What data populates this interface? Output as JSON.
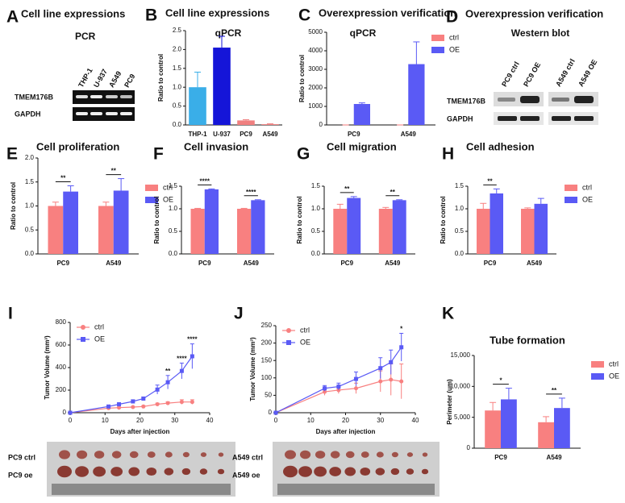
{
  "figures": [
    {
      "panel": "A",
      "title": "Cell line expressions",
      "subtitle": "PCR",
      "columns": [
        "THP-1",
        "U-937",
        "A549",
        "PC9"
      ],
      "rows": [
        "TMEM176B",
        "GAPDH"
      ]
    },
    {
      "panel": "D",
      "title": "Overexpression verification",
      "subtitle": "Western blot",
      "columns": [
        "PC9 ctrl",
        "PC9 OE",
        "A549 ctrl",
        "A549 OE"
      ],
      "rows": [
        "TMEM176B",
        "GAPDH"
      ]
    }
  ],
  "chart_data": [
    {
      "panel": "B",
      "type": "bar",
      "title": "Cell line expressions",
      "subtitle": "qPCR",
      "y_label": "Ratio to control",
      "categories": [
        "THP-1",
        "U-937",
        "PC9",
        "A549"
      ],
      "values": [
        1.0,
        2.05,
        0.12,
        0.02
      ],
      "errors": [
        0.4,
        0.3,
        0.02,
        0.01
      ],
      "colors": [
        "#3aaee8",
        "#1515d8",
        "#f08080",
        "#f08080"
      ],
      "ylim": [
        0,
        2.5
      ],
      "yticks": [
        {
          "value": 0,
          "label": "0.0"
        },
        0.5,
        {
          "value": 1,
          "label": "1.0"
        },
        1.5,
        {
          "value": 2,
          "label": "2.0"
        },
        2.5
      ]
    },
    {
      "panel": "C",
      "type": "bar",
      "title": "Overexpression verification",
      "subtitle": "qPCR",
      "y_label": "Ratio to control",
      "legend": "right",
      "categories": [
        "PC9",
        "A549"
      ],
      "series": [
        {
          "name": "ctrl",
          "color": "#f88080",
          "values": [
            1,
            1
          ],
          "errors": [
            0,
            0
          ]
        },
        {
          "name": "OE",
          "color": "#5a5af5",
          "values": [
            1130,
            3280
          ],
          "errors": [
            60,
            1200
          ]
        }
      ],
      "ylim": [
        0,
        5000
      ],
      "yticks": [
        0,
        1000,
        2000,
        3000,
        4000,
        5000
      ]
    },
    {
      "panel": "E",
      "type": "bar",
      "title": "Cell proliferation",
      "y_label": "Ratio to control",
      "legend": "right",
      "categories": [
        "PC9",
        "A549"
      ],
      "series": [
        {
          "name": "ctrl",
          "color": "#f88080",
          "values": [
            1.0,
            1.0
          ],
          "errors": [
            0.08,
            0.08
          ]
        },
        {
          "name": "OE",
          "color": "#5a5af5",
          "values": [
            1.3,
            1.32
          ],
          "errors": [
            0.12,
            0.25
          ]
        }
      ],
      "significance": [
        "**",
        "**"
      ],
      "ylim": [
        0,
        2
      ],
      "yticks": [
        {
          "value": 0,
          "label": "0.0"
        },
        0.5,
        {
          "value": 1,
          "label": "1.0"
        },
        1.5,
        {
          "value": 2,
          "label": "2.0"
        }
      ]
    },
    {
      "panel": "F",
      "type": "bar",
      "title": "Cell invasion",
      "y_label": "Ratio to control",
      "categories": [
        "PC9",
        "A549"
      ],
      "series": [
        {
          "name": "ctrl",
          "color": "#f88080",
          "values": [
            1.0,
            1.0
          ],
          "errors": [
            0.01,
            0.01
          ]
        },
        {
          "name": "OE",
          "color": "#5a5af5",
          "values": [
            1.43,
            1.19
          ],
          "errors": [
            0.01,
            0.01
          ]
        }
      ],
      "significance": [
        "****",
        "****"
      ],
      "ylim": [
        0,
        1.5
      ],
      "yticks": [
        {
          "value": 0,
          "label": "0.0"
        },
        0.5,
        {
          "value": 1,
          "label": "1.0"
        },
        1.5
      ]
    },
    {
      "panel": "G",
      "type": "bar",
      "title": "Cell migration",
      "y_label": "Ratio to control",
      "categories": [
        "PC9",
        "A549"
      ],
      "series": [
        {
          "name": "ctrl",
          "color": "#f88080",
          "values": [
            1.0,
            1.0
          ],
          "errors": [
            0.1,
            0.03
          ]
        },
        {
          "name": "OE",
          "color": "#5a5af5",
          "values": [
            1.24,
            1.19
          ],
          "errors": [
            0.03,
            0.01
          ]
        }
      ],
      "significance": [
        "**",
        "**"
      ],
      "ylim": [
        0,
        1.5
      ],
      "yticks": [
        {
          "value": 0,
          "label": "0.0"
        },
        0.5,
        {
          "value": 1,
          "label": "1.0"
        },
        1.5
      ]
    },
    {
      "panel": "H",
      "type": "bar",
      "title": "Cell adhesion",
      "y_label": "Ratio to control",
      "legend": "right",
      "categories": [
        "PC9",
        "A549"
      ],
      "series": [
        {
          "name": "ctrl",
          "color": "#f88080",
          "values": [
            1.0,
            1.0
          ],
          "errors": [
            0.12,
            0.02
          ]
        },
        {
          "name": "OE",
          "color": "#5a5af5",
          "values": [
            1.34,
            1.11
          ],
          "errors": [
            0.1,
            0.12
          ]
        }
      ],
      "significance": [
        "**",
        null
      ],
      "ylim": [
        0,
        1.5
      ],
      "yticks": [
        {
          "value": 0,
          "label": "0.0"
        },
        0.5,
        {
          "value": 1,
          "label": "1.0"
        },
        1.5
      ]
    },
    {
      "panel": "I",
      "type": "line",
      "y_label": "Tumor Volume (mm³)",
      "x_label": "Days after injection",
      "legend": "top-left",
      "x": [
        0,
        11,
        14,
        18,
        21,
        25,
        28,
        32,
        35
      ],
      "series": [
        {
          "name": "ctrl",
          "color": "#f88080",
          "marker": "circle",
          "values": [
            0,
            40,
            45,
            50,
            55,
            75,
            85,
            95,
            95
          ],
          "errors": [
            0,
            5,
            5,
            5,
            8,
            10,
            12,
            20,
            20
          ]
        },
        {
          "name": "OE",
          "color": "#5a5af5",
          "marker": "square",
          "values": [
            0,
            55,
            75,
            100,
            125,
            205,
            270,
            370,
            500
          ],
          "errors": [
            0,
            5,
            10,
            15,
            15,
            40,
            60,
            70,
            110
          ]
        }
      ],
      "significance": [
        null,
        null,
        null,
        null,
        null,
        null,
        "**",
        "****",
        "****"
      ],
      "xlim": [
        0,
        40
      ],
      "xticks": [
        0,
        10,
        20,
        30,
        40
      ],
      "ylim": [
        0,
        800
      ],
      "yticks": [
        0,
        200,
        400,
        600,
        800
      ],
      "photo_labels": [
        "PC9 ctrl",
        "PC9 oe"
      ]
    },
    {
      "panel": "J",
      "type": "line",
      "y_label": "Tumor Volume (mm³)",
      "x_label": "Days after injection",
      "legend": "top-left",
      "x": [
        0,
        14,
        18,
        23,
        30,
        33,
        36
      ],
      "series": [
        {
          "name": "ctrl",
          "color": "#f88080",
          "marker": "circle",
          "values": [
            0,
            60,
            65,
            70,
            90,
            95,
            90
          ],
          "errors": [
            0,
            10,
            10,
            15,
            30,
            45,
            50
          ]
        },
        {
          "name": "OE",
          "color": "#5a5af5",
          "marker": "square",
          "values": [
            0,
            70,
            75,
            97,
            128,
            145,
            188
          ],
          "errors": [
            0,
            8,
            10,
            20,
            30,
            35,
            40
          ]
        }
      ],
      "significance": [
        null,
        null,
        null,
        null,
        null,
        null,
        "*"
      ],
      "xlim": [
        0,
        40
      ],
      "xticks": [
        0,
        10,
        20,
        30,
        40
      ],
      "ylim": [
        0,
        250
      ],
      "yticks": [
        0,
        50,
        100,
        150,
        200,
        250
      ],
      "photo_labels": [
        "A549 ctrl",
        "A549 oe"
      ]
    },
    {
      "panel": "K",
      "type": "bar",
      "title": "Tube formation",
      "y_label": "Perimeter (um)",
      "legend": "right",
      "categories": [
        "PC9",
        "A549"
      ],
      "series": [
        {
          "name": "ctrl",
          "color": "#f88080",
          "values": [
            6100,
            4200
          ],
          "errors": [
            1300,
            900
          ]
        },
        {
          "name": "OE",
          "color": "#5a5af5",
          "values": [
            7900,
            6500
          ],
          "errors": [
            1800,
            1600
          ]
        }
      ],
      "significance": [
        "*",
        "**"
      ],
      "ylim": [
        0,
        15000
      ],
      "yticks": [
        0,
        {
          "value": 5000,
          "label": "5,000"
        },
        {
          "value": 10000,
          "label": "10,000"
        },
        {
          "value": 15000,
          "label": "15,000"
        }
      ]
    }
  ]
}
